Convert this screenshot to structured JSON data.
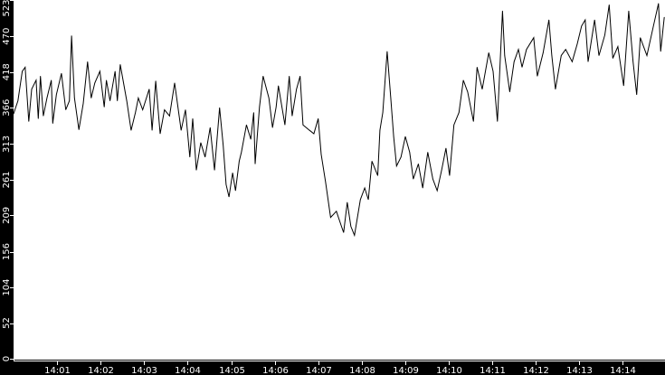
{
  "chart_data": {
    "type": "line",
    "title": "",
    "xlabel": "",
    "ylabel": "",
    "grid": false,
    "colors": {
      "background": "#000000",
      "plot_area": "#ffffff",
      "line": "#000000",
      "text": "#ffffff"
    },
    "xlim": [
      "14:00:00",
      "14:14:58"
    ],
    "ylim": [
      0,
      523
    ],
    "x_ticks": [
      "14:01",
      "14:02",
      "14:03",
      "14:04",
      "14:05",
      "14:06",
      "14:07",
      "14:08",
      "14:09",
      "14:10",
      "14:11",
      "14:12",
      "14:13",
      "14:14"
    ],
    "y_ticks": [
      "0",
      "52",
      "104",
      "156",
      "209",
      "261",
      "313",
      "366",
      "418",
      "470",
      "523"
    ],
    "series": [
      {
        "points": [
          [
            "14:00:00",
            357
          ],
          [
            "14:00:06",
            376
          ],
          [
            "14:00:12",
            419
          ],
          [
            "14:00:16",
            425
          ],
          [
            "14:00:21",
            346
          ],
          [
            "14:00:25",
            393
          ],
          [
            "14:00:31",
            406
          ],
          [
            "14:00:34",
            350
          ],
          [
            "14:00:37",
            412
          ],
          [
            "14:00:41",
            354
          ],
          [
            "14:00:46",
            380
          ],
          [
            "14:00:52",
            406
          ],
          [
            "14:00:54",
            343
          ],
          [
            "14:00:59",
            385
          ],
          [
            "14:01:06",
            416
          ],
          [
            "14:01:12",
            363
          ],
          [
            "14:01:17",
            376
          ],
          [
            "14:01:20",
            471
          ],
          [
            "14:01:24",
            380
          ],
          [
            "14:01:30",
            334
          ],
          [
            "14:01:36",
            372
          ],
          [
            "14:01:42",
            433
          ],
          [
            "14:01:47",
            380
          ],
          [
            "14:01:52",
            402
          ],
          [
            "14:01:59",
            419
          ],
          [
            "14:02:05",
            367
          ],
          [
            "14:02:08",
            406
          ],
          [
            "14:02:13",
            376
          ],
          [
            "14:02:20",
            419
          ],
          [
            "14:02:23",
            376
          ],
          [
            "14:02:27",
            429
          ],
          [
            "14:02:36",
            376
          ],
          [
            "14:02:42",
            333
          ],
          [
            "14:02:48",
            359
          ],
          [
            "14:02:52",
            380
          ],
          [
            "14:02:58",
            363
          ],
          [
            "14:03:07",
            393
          ],
          [
            "14:03:11",
            333
          ],
          [
            "14:03:16",
            405
          ],
          [
            "14:03:22",
            328
          ],
          [
            "14:03:28",
            363
          ],
          [
            "14:03:35",
            354
          ],
          [
            "14:03:42",
            402
          ],
          [
            "14:03:51",
            333
          ],
          [
            "14:03:57",
            363
          ],
          [
            "14:04:03",
            294
          ],
          [
            "14:04:07",
            350
          ],
          [
            "14:04:12",
            275
          ],
          [
            "14:04:18",
            315
          ],
          [
            "14:04:24",
            294
          ],
          [
            "14:04:31",
            337
          ],
          [
            "14:04:37",
            275
          ],
          [
            "14:04:44",
            366
          ],
          [
            "14:04:49",
            311
          ],
          [
            "14:04:53",
            254
          ],
          [
            "14:04:57",
            236
          ],
          [
            "14:05:02",
            271
          ],
          [
            "14:05:06",
            245
          ],
          [
            "14:05:11",
            288
          ],
          [
            "14:05:14",
            301
          ],
          [
            "14:05:21",
            341
          ],
          [
            "14:05:27",
            320
          ],
          [
            "14:05:31",
            359
          ],
          [
            "14:05:33",
            284
          ],
          [
            "14:05:39",
            367
          ],
          [
            "14:05:44",
            412
          ],
          [
            "14:05:52",
            380
          ],
          [
            "14:05:57",
            337
          ],
          [
            "14:06:02",
            367
          ],
          [
            "14:06:05",
            398
          ],
          [
            "14:06:14",
            341
          ],
          [
            "14:06:20",
            412
          ],
          [
            "14:06:24",
            354
          ],
          [
            "14:06:30",
            393
          ],
          [
            "14:06:35",
            412
          ],
          [
            "14:06:39",
            341
          ],
          [
            "14:06:48",
            333
          ],
          [
            "14:06:54",
            328
          ],
          [
            "14:07:00",
            350
          ],
          [
            "14:07:04",
            298
          ],
          [
            "14:07:10",
            258
          ],
          [
            "14:07:17",
            206
          ],
          [
            "14:07:25",
            215
          ],
          [
            "14:07:32",
            193
          ],
          [
            "14:07:35",
            184
          ],
          [
            "14:07:40",
            228
          ],
          [
            "14:07:45",
            193
          ],
          [
            "14:07:50",
            180
          ],
          [
            "14:07:58",
            232
          ],
          [
            "14:08:04",
            249
          ],
          [
            "14:08:09",
            232
          ],
          [
            "14:08:14",
            288
          ],
          [
            "14:08:22",
            267
          ],
          [
            "14:08:25",
            333
          ],
          [
            "14:08:29",
            359
          ],
          [
            "14:08:35",
            448
          ],
          [
            "14:08:40",
            380
          ],
          [
            "14:08:44",
            324
          ],
          [
            "14:08:48",
            281
          ],
          [
            "14:08:54",
            294
          ],
          [
            "14:09:00",
            324
          ],
          [
            "14:09:06",
            301
          ],
          [
            "14:09:11",
            262
          ],
          [
            "14:09:18",
            284
          ],
          [
            "14:09:24",
            249
          ],
          [
            "14:09:31",
            301
          ],
          [
            "14:09:38",
            262
          ],
          [
            "14:09:44",
            245
          ],
          [
            "14:09:50",
            275
          ],
          [
            "14:09:56",
            307
          ],
          [
            "14:10:01",
            267
          ],
          [
            "14:10:07",
            341
          ],
          [
            "14:10:14",
            359
          ],
          [
            "14:10:20",
            406
          ],
          [
            "14:10:26",
            389
          ],
          [
            "14:10:34",
            346
          ],
          [
            "14:10:39",
            425
          ],
          [
            "14:10:46",
            393
          ],
          [
            "14:10:55",
            446
          ],
          [
            "14:11:01",
            419
          ],
          [
            "14:11:07",
            346
          ],
          [
            "14:11:14",
            507
          ],
          [
            "14:11:17",
            442
          ],
          [
            "14:11:24",
            389
          ],
          [
            "14:11:30",
            433
          ],
          [
            "14:11:36",
            451
          ],
          [
            "14:11:41",
            425
          ],
          [
            "14:11:47",
            451
          ],
          [
            "14:11:57",
            468
          ],
          [
            "14:12:02",
            412
          ],
          [
            "14:12:10",
            446
          ],
          [
            "14:12:18",
            494
          ],
          [
            "14:12:22",
            442
          ],
          [
            "14:12:27",
            393
          ],
          [
            "14:12:35",
            442
          ],
          [
            "14:12:41",
            451
          ],
          [
            "14:12:50",
            433
          ],
          [
            "14:12:57",
            459
          ],
          [
            "14:13:03",
            485
          ],
          [
            "14:13:08",
            494
          ],
          [
            "14:13:12",
            433
          ],
          [
            "14:13:21",
            494
          ],
          [
            "14:13:27",
            442
          ],
          [
            "14:13:35",
            472
          ],
          [
            "14:13:41",
            516
          ],
          [
            "14:13:46",
            438
          ],
          [
            "14:13:53",
            455
          ],
          [
            "14:14:01",
            398
          ],
          [
            "14:14:08",
            507
          ],
          [
            "14:14:14",
            433
          ],
          [
            "14:14:19",
            385
          ],
          [
            "14:14:24",
            468
          ],
          [
            "14:14:33",
            442
          ],
          [
            "14:14:42",
            485
          ],
          [
            "14:14:49",
            518
          ],
          [
            "14:14:52",
            448
          ],
          [
            "14:14:57",
            498
          ]
        ]
      }
    ]
  }
}
